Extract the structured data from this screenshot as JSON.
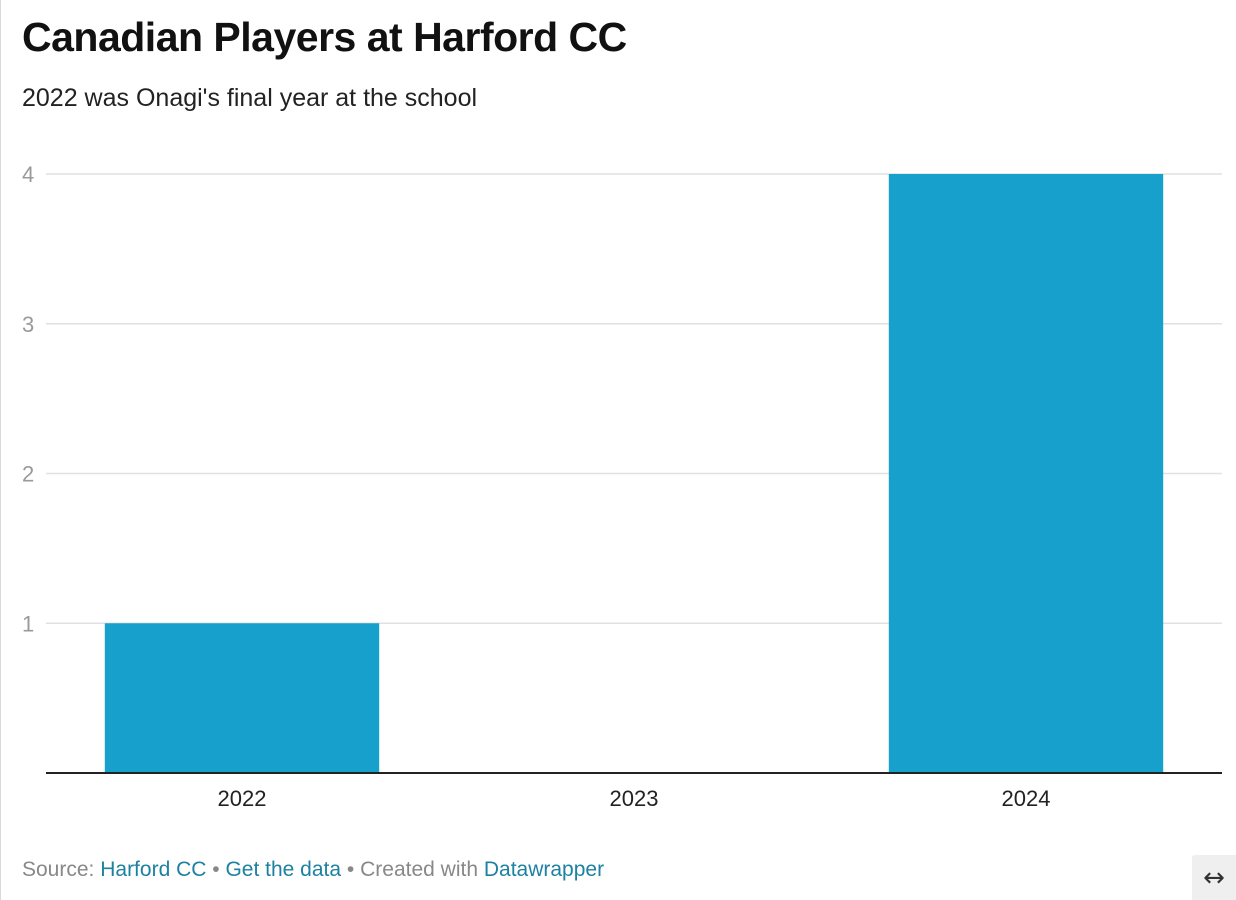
{
  "header": {
    "title": "Canadian Players at Harford CC",
    "subtitle": "2022 was Onagi's final year at the school"
  },
  "chart_data": {
    "type": "bar",
    "title": "Canadian Players at Harford CC",
    "subtitle": "2022 was Onagi's final year at the school",
    "categories": [
      "2022",
      "2023",
      "2024"
    ],
    "values": [
      1,
      0,
      4
    ],
    "xlabel": "",
    "ylabel": "",
    "ylim": [
      0,
      4
    ],
    "yticks": [
      1,
      2,
      3,
      4
    ],
    "grid": true,
    "legend": "none",
    "bar_color": "#16a0cb"
  },
  "footer": {
    "source_label": "Source:",
    "source_link": "Harford CC",
    "separator": "•",
    "data_link": "Get the data",
    "created_label": "Created with",
    "tool_link": "Datawrapper"
  },
  "controls": {
    "resize_icon": "↔"
  },
  "colors": {
    "bar": "#16a0cb",
    "link": "#1d81a2",
    "grid": "#e1e1e1",
    "axis": "#222222",
    "tick_label": "#9a9a9a"
  }
}
